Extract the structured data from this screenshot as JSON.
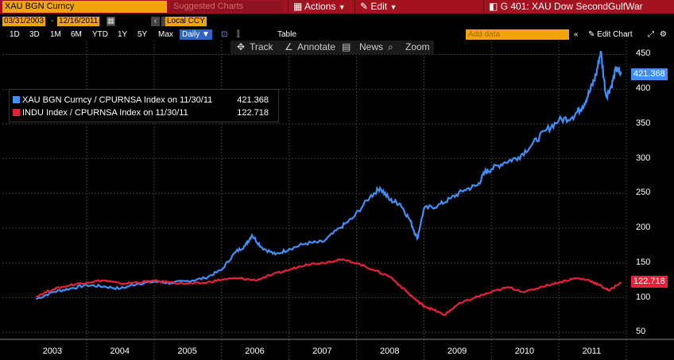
{
  "toolbar": {
    "security": "XAU BGN Curncy",
    "suggested": "Suggested Charts",
    "actions_label": "Actions",
    "edit_label": "Edit",
    "title": "G 401: XAU Dow SecondGulfWar"
  },
  "range": {
    "start_date": "03/31/2003",
    "end_date": "12/16/2011",
    "currency": "Local CCY",
    "periods": [
      "1D",
      "3D",
      "1M",
      "6M",
      "YTD",
      "1Y",
      "5Y",
      "Max"
    ],
    "frequency": "Daily",
    "table_label": "Table",
    "add_data_placeholder": "Add data",
    "edit_chart_label": "Edit Chart"
  },
  "tools": {
    "track": "Track",
    "annotate": "Annotate",
    "news": "News",
    "zoom": "Zoom"
  },
  "colors": {
    "gold": "#3f8ff5",
    "dow": "#e8213a",
    "toolbar": "#a4121f",
    "orange": "#f1a40c"
  },
  "chart_data": {
    "type": "line",
    "ylim": [
      40,
      470
    ],
    "yticks": [
      50,
      100,
      150,
      200,
      250,
      300,
      350,
      400,
      450
    ],
    "x_labels": [
      "2003",
      "2004",
      "2005",
      "2006",
      "2007",
      "2008",
      "2009",
      "2010",
      "2011"
    ],
    "legend": [
      {
        "name": "XAU BGN Curncy / CPURNSA Index on 11/30/11",
        "value": "421.368"
      },
      {
        "name": "INDU Index / CPURNSA Index on 11/30/11",
        "value": "122.718"
      }
    ],
    "last_values": [
      "421.368",
      "122.718"
    ],
    "series": [
      {
        "name": "XAU BGN Curncy / CPURNSA Index",
        "x": [
          2003.25,
          2003.5,
          2003.75,
          2004.0,
          2004.25,
          2004.5,
          2004.75,
          2005.0,
          2005.25,
          2005.5,
          2005.75,
          2006.0,
          2006.2,
          2006.35,
          2006.45,
          2006.6,
          2006.8,
          2007.0,
          2007.25,
          2007.5,
          2007.75,
          2007.95,
          2008.2,
          2008.35,
          2008.5,
          2008.65,
          2008.8,
          2008.9,
          2009.0,
          2009.2,
          2009.4,
          2009.6,
          2009.8,
          2009.9,
          2010.0,
          2010.2,
          2010.4,
          2010.6,
          2010.8,
          2011.0,
          2011.2,
          2011.35,
          2011.45,
          2011.55,
          2011.62,
          2011.7,
          2011.78,
          2011.85,
          2011.92
        ],
        "y": [
          98,
          108,
          113,
          118,
          116,
          113,
          120,
          123,
          121,
          124,
          128,
          140,
          165,
          175,
          190,
          172,
          162,
          170,
          178,
          180,
          200,
          215,
          245,
          258,
          240,
          235,
          210,
          185,
          228,
          232,
          243,
          255,
          262,
          280,
          285,
          295,
          302,
          320,
          340,
          355,
          360,
          375,
          395,
          420,
          455,
          390,
          405,
          430,
          421
        ]
      },
      {
        "name": "INDU Index / CPURNSA Index",
        "x": [
          2003.25,
          2003.5,
          2003.75,
          2004.0,
          2004.25,
          2004.5,
          2004.75,
          2005.0,
          2005.25,
          2005.5,
          2005.75,
          2006.0,
          2006.25,
          2006.5,
          2006.75,
          2007.0,
          2007.25,
          2007.5,
          2007.75,
          2008.0,
          2008.25,
          2008.5,
          2008.75,
          2008.9,
          2009.0,
          2009.15,
          2009.3,
          2009.5,
          2009.75,
          2010.0,
          2010.25,
          2010.5,
          2010.75,
          2011.0,
          2011.25,
          2011.45,
          2011.6,
          2011.75,
          2011.92
        ],
        "y": [
          102,
          112,
          118,
          122,
          125,
          120,
          122,
          124,
          122,
          120,
          121,
          126,
          128,
          125,
          133,
          140,
          148,
          150,
          155,
          150,
          140,
          130,
          108,
          95,
          88,
          82,
          75,
          90,
          100,
          108,
          115,
          108,
          116,
          122,
          128,
          125,
          118,
          110,
          122.7
        ]
      }
    ]
  }
}
